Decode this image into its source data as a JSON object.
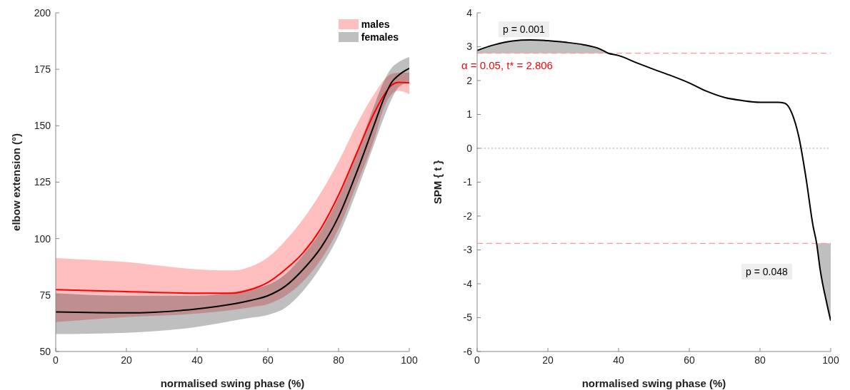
{
  "chart_data": [
    {
      "type": "line",
      "xlabel": "normalised swing phase (%)",
      "ylabel": "elbow extension (°)",
      "xlim": [
        0,
        100
      ],
      "ylim": [
        50,
        200
      ],
      "xticks": [
        0,
        20,
        40,
        60,
        80,
        100
      ],
      "yticks": [
        50,
        75,
        100,
        125,
        150,
        175,
        200
      ],
      "grid": false,
      "legend": "top right",
      "line_style": "solid",
      "marker": "none",
      "x": [
        0,
        20,
        40,
        50,
        55,
        60,
        65,
        70,
        75,
        80,
        85,
        90,
        93,
        95,
        97,
        100
      ],
      "series": [
        {
          "name": "males",
          "color": "#ff0000",
          "values": [
            77.4,
            76.5,
            75.8,
            75.8,
            77.4,
            80.6,
            86.4,
            93.8,
            104.5,
            119.3,
            137.4,
            155.4,
            163.9,
            168,
            169.2,
            169
          ],
          "lower": [
            63,
            65.2,
            66.8,
            68.4,
            69.6,
            71,
            74.7,
            81.1,
            90.7,
            104.5,
            123.6,
            143.7,
            158.6,
            163.9,
            165.5,
            163.9
          ],
          "upper": [
            91.4,
            89.6,
            86.4,
            85.9,
            87.5,
            91.7,
            99.2,
            108.7,
            120.4,
            134.2,
            150.1,
            163.9,
            170.5,
            173,
            173.5,
            173.5
          ]
        },
        {
          "name": "females",
          "color": "#000000",
          "values": [
            67.5,
            67.1,
            68.9,
            71,
            72.6,
            74.7,
            79,
            86.4,
            96,
            109.8,
            128.9,
            150.1,
            162.8,
            169.2,
            172.4,
            175.4
          ],
          "lower": [
            57.7,
            58.3,
            60.9,
            63.6,
            64.9,
            66.2,
            69.4,
            76.9,
            87.5,
            101.3,
            120.4,
            141.6,
            154.4,
            161.8,
            167.1,
            169.2
          ],
          "upper": [
            75.8,
            74.7,
            74.7,
            76.3,
            77.8,
            79.5,
            84.3,
            92.8,
            103.4,
            118.3,
            137.4,
            158.6,
            170.3,
            175.6,
            178.2,
            180.4
          ]
        }
      ]
    },
    {
      "type": "line",
      "xlabel": "normalised swing phase (%)",
      "ylabel": "SPM { t }",
      "xlim": [
        0,
        100
      ],
      "ylim": [
        -6,
        4
      ],
      "xticks": [
        0,
        20,
        40,
        60,
        80,
        100
      ],
      "yticks": [
        -6,
        -5,
        -4,
        -3,
        -2,
        -1,
        0,
        1,
        2,
        3,
        4
      ],
      "grid": false,
      "legend": false,
      "line_style": "solid",
      "marker": "none",
      "x": [
        0,
        5,
        10,
        15,
        20,
        25,
        30,
        35,
        37,
        40,
        45,
        50,
        55,
        60,
        65,
        70,
        75,
        80,
        85,
        87,
        89,
        91,
        93,
        95,
        96,
        97,
        99,
        100
      ],
      "series": [
        {
          "color": "#000000",
          "values": [
            2.89,
            3.06,
            3.17,
            3.2,
            3.18,
            3.13,
            3.06,
            2.92,
            2.81,
            2.74,
            2.53,
            2.33,
            2.14,
            1.93,
            1.68,
            1.5,
            1.41,
            1.36,
            1.36,
            1.33,
            1.04,
            0.33,
            -0.87,
            -2.29,
            -2.8,
            -3.57,
            -4.63,
            -5.09
          ],
          "lower": [
            2.806,
            2.806,
            2.806,
            2.806,
            2.806,
            2.806,
            2.806,
            2.806,
            2.806,
            null,
            null,
            null,
            null,
            null,
            null,
            null,
            null,
            null,
            null,
            null,
            null,
            null,
            null,
            null,
            -2.8,
            -3.57,
            -4.63,
            -5.09
          ],
          "upper": [
            2.89,
            3.06,
            3.17,
            3.2,
            3.18,
            3.13,
            3.06,
            2.92,
            2.81,
            null,
            null,
            null,
            null,
            null,
            null,
            null,
            null,
            null,
            null,
            null,
            null,
            null,
            null,
            null,
            -2.806,
            -2.806,
            -2.806,
            -2.806
          ]
        }
      ],
      "ref_lines": [
        {
          "axis": "y",
          "value": 2.806,
          "label": "α  = 0.05,     t* = 2.806",
          "color": "#ff9999",
          "line_style": "dashed"
        },
        {
          "axis": "y",
          "value": -2.806,
          "color": "#ff9999",
          "line_style": "dashed"
        },
        {
          "axis": "y",
          "value": 0,
          "color": "#aaaaaa",
          "line_style": "dotted"
        }
      ],
      "annotations": [
        "p = 0.001",
        "p = 0.048"
      ]
    }
  ]
}
